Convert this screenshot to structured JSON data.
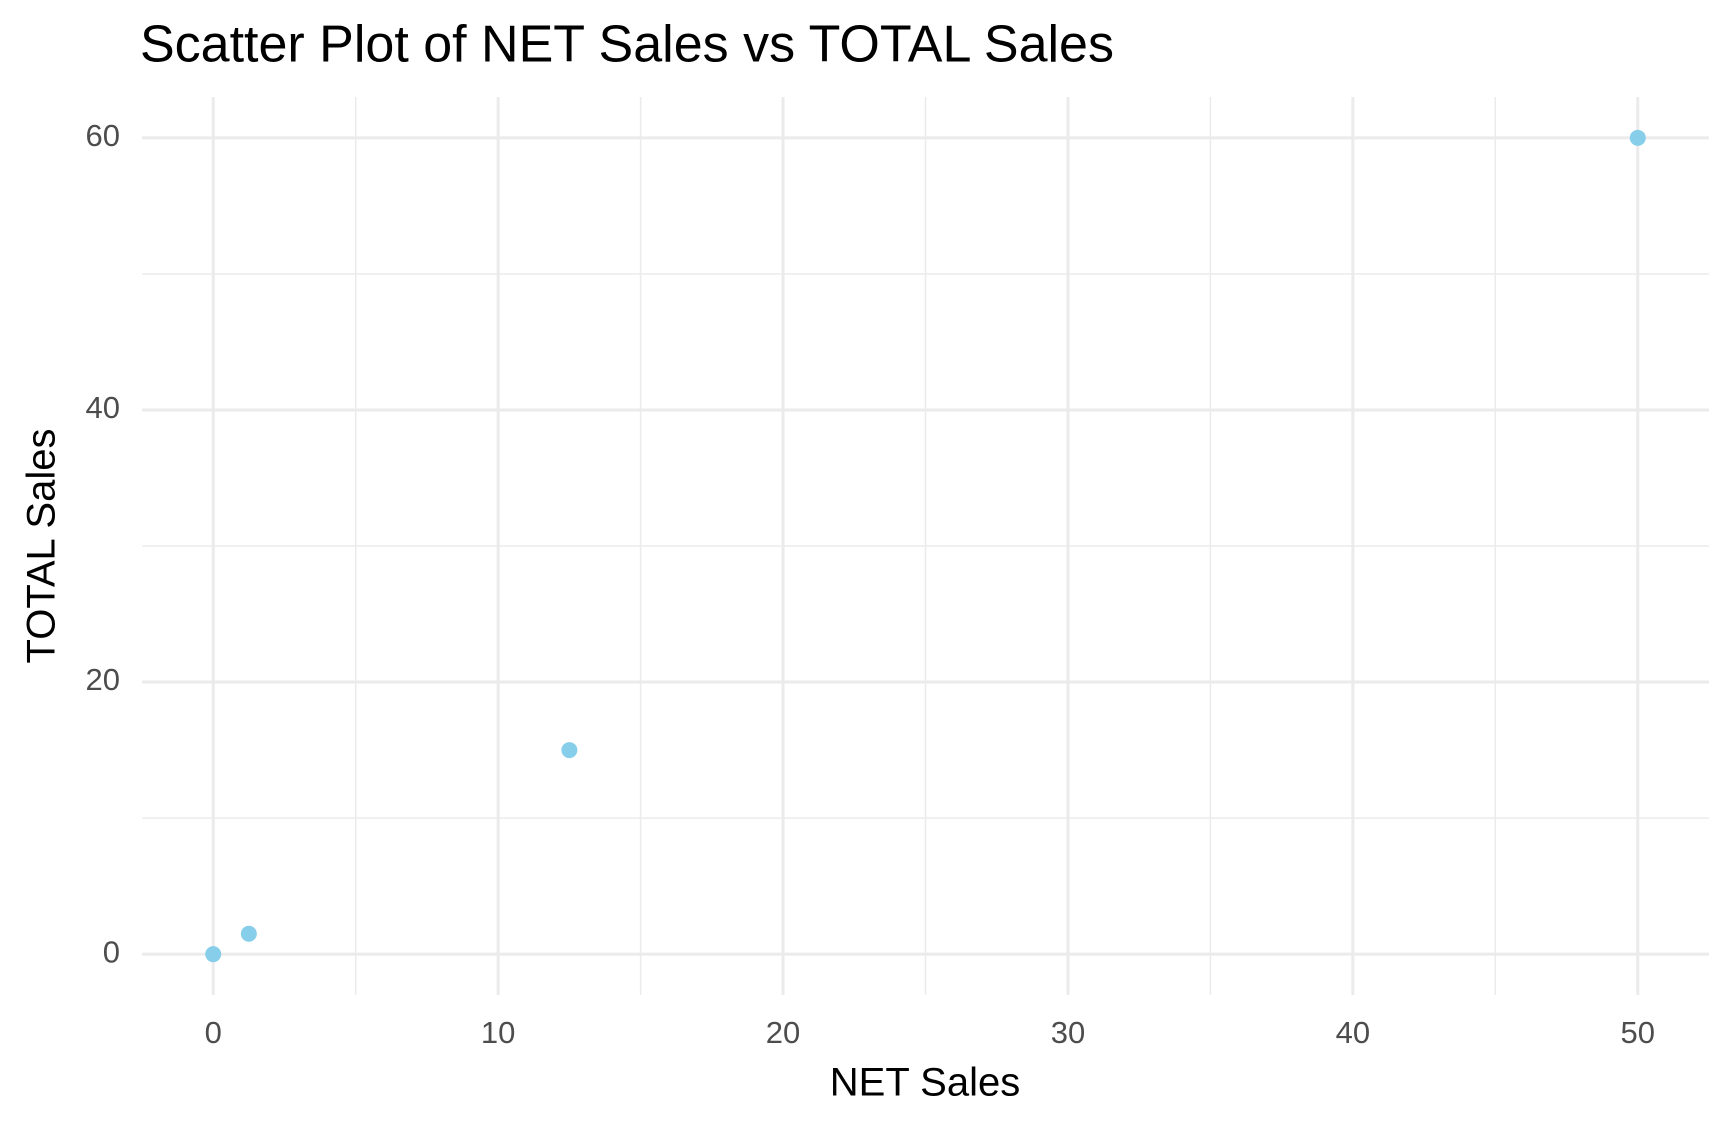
{
  "chart_data": {
    "type": "scatter",
    "title": "Scatter Plot of NET Sales vs TOTAL Sales",
    "x_label": "NET Sales",
    "y_label": "TOTAL Sales",
    "x": [
      0,
      1.25,
      12.5,
      50
    ],
    "values": [
      0,
      1.5,
      15,
      60
    ],
    "color": "#87ceeb",
    "xlim": [
      -2.5,
      52.5
    ],
    "ylim": [
      -3,
      63
    ],
    "xticks": [
      0,
      10,
      20,
      30,
      40,
      50
    ],
    "yticks": [
      0,
      20,
      40,
      60
    ],
    "xminorticks": [
      5,
      15,
      25,
      35,
      45
    ],
    "yminorticks": [
      10,
      30,
      50
    ],
    "grid": true
  }
}
